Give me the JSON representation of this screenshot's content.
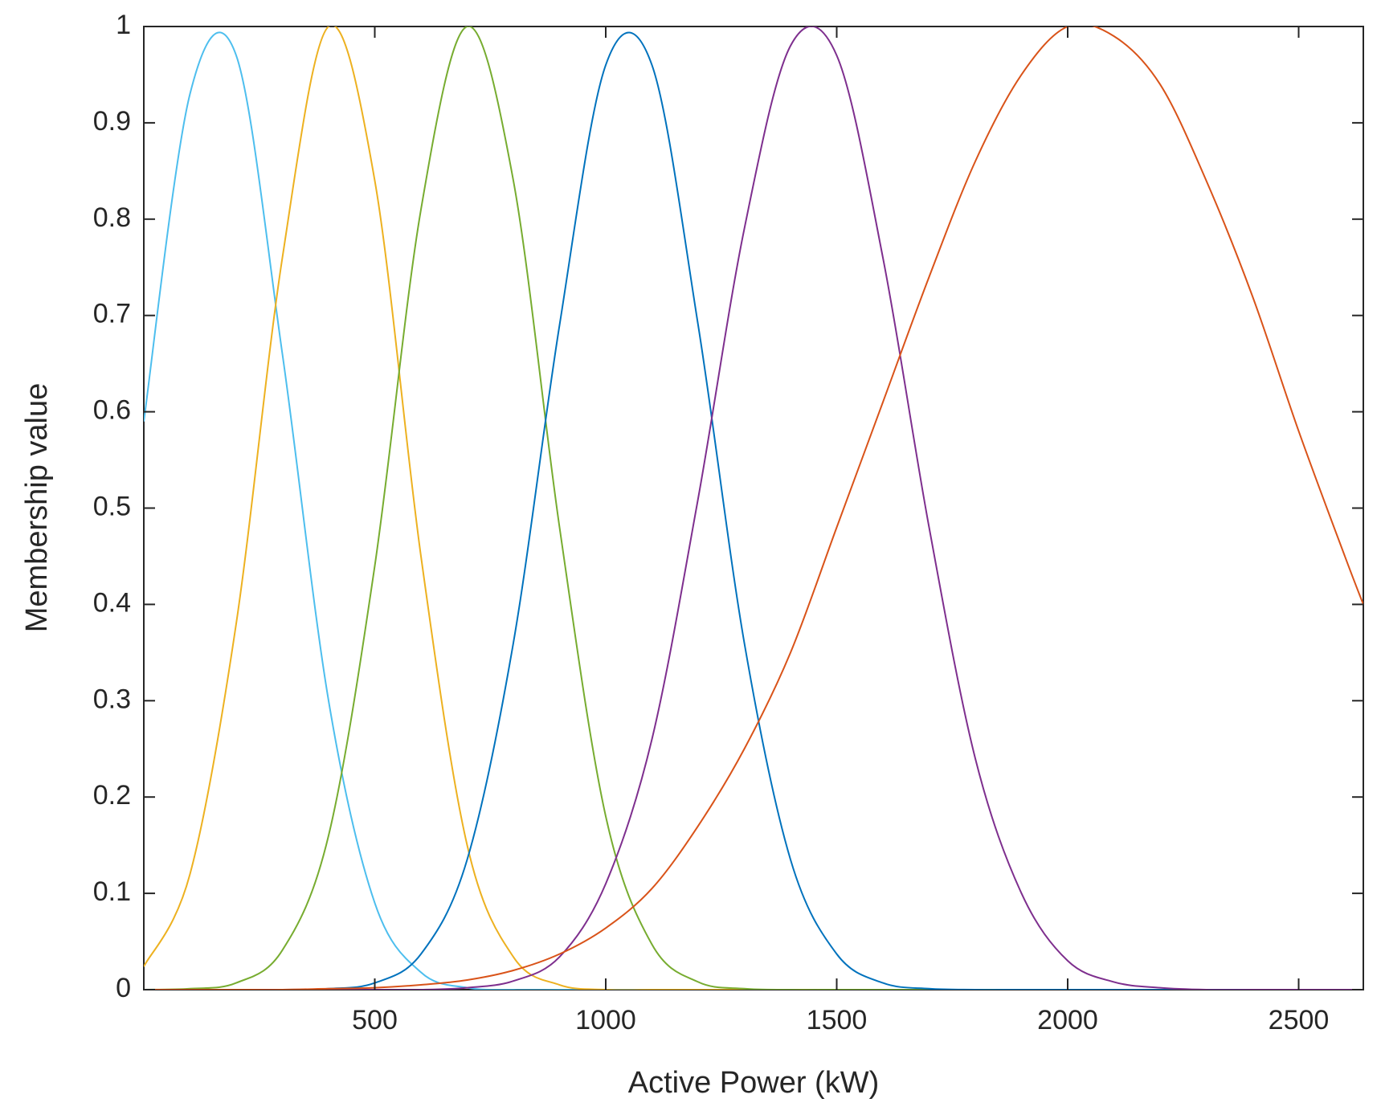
{
  "chart_data": {
    "type": "line",
    "xlabel": "Active Power (kW)",
    "ylabel": "Membership value",
    "x": [
      0,
      100,
      200,
      300,
      400,
      500,
      600,
      700,
      800,
      900,
      1000,
      1100,
      1200,
      1300,
      1400,
      1500,
      1600,
      1700,
      1800,
      1900,
      2000,
      2100,
      2200,
      2300,
      2400,
      2500,
      2600,
      2640
    ],
    "series": [
      {
        "color": "#4dbeee",
        "values": [
          0.59,
          0.93,
          0.97,
          0.66,
          0.3,
          0.09,
          0.018,
          0.002,
          0,
          0,
          0,
          0,
          0,
          0,
          0,
          0,
          0,
          0,
          0,
          0,
          0,
          0,
          0,
          0,
          0,
          0,
          0,
          0
        ]
      },
      {
        "color": "#edb120",
        "values": [
          0.024,
          0.12,
          0.38,
          0.76,
          1,
          0.84,
          0.45,
          0.15,
          0.034,
          0.005,
          0,
          0,
          0,
          0,
          0,
          0,
          0,
          0,
          0,
          0,
          0,
          0,
          0,
          0,
          0,
          0,
          0,
          0
        ]
      },
      {
        "color": "#77ac30",
        "values": [
          0,
          0.001,
          0.007,
          0.041,
          0.16,
          0.44,
          0.81,
          1,
          0.84,
          0.48,
          0.18,
          0.047,
          0.008,
          0.001,
          0,
          0,
          0,
          0,
          0,
          0,
          0,
          0,
          0,
          0,
          0,
          0,
          0,
          0
        ]
      },
      {
        "color": "#0072bd",
        "values": [
          0,
          0,
          0,
          0,
          0.001,
          0.007,
          0.037,
          0.135,
          0.36,
          0.69,
          0.96,
          0.96,
          0.69,
          0.36,
          0.135,
          0.037,
          0.007,
          0.001,
          0,
          0,
          0,
          0,
          0,
          0,
          0,
          0,
          0,
          0
        ]
      },
      {
        "color": "#7e2f8e",
        "values": [
          0,
          0,
          0,
          0,
          0,
          0,
          0,
          0.002,
          0.009,
          0.034,
          0.11,
          0.26,
          0.51,
          0.79,
          0.98,
          0.97,
          0.76,
          0.48,
          0.24,
          0.1,
          0.03,
          0.008,
          0.002,
          0,
          0,
          0,
          0,
          0
        ]
      },
      {
        "color": "#d95319",
        "values": [
          0,
          0,
          0,
          0,
          0.001,
          0.002,
          0.005,
          0.01,
          0.02,
          0.037,
          0.064,
          0.105,
          0.17,
          0.25,
          0.35,
          0.48,
          0.61,
          0.74,
          0.86,
          0.95,
          1,
          0.99,
          0.94,
          0.84,
          0.72,
          0.58,
          0.45,
          0.4
        ]
      }
    ],
    "xlim": [
      0,
      2640
    ],
    "xticks": [
      500,
      1000,
      1500,
      2000,
      2500
    ],
    "ylim": [
      0,
      1
    ],
    "yticks": [
      0,
      0.1,
      0.2,
      0.3,
      0.4,
      0.5,
      0.6,
      0.7,
      0.8,
      0.9,
      1
    ],
    "grid": false
  }
}
